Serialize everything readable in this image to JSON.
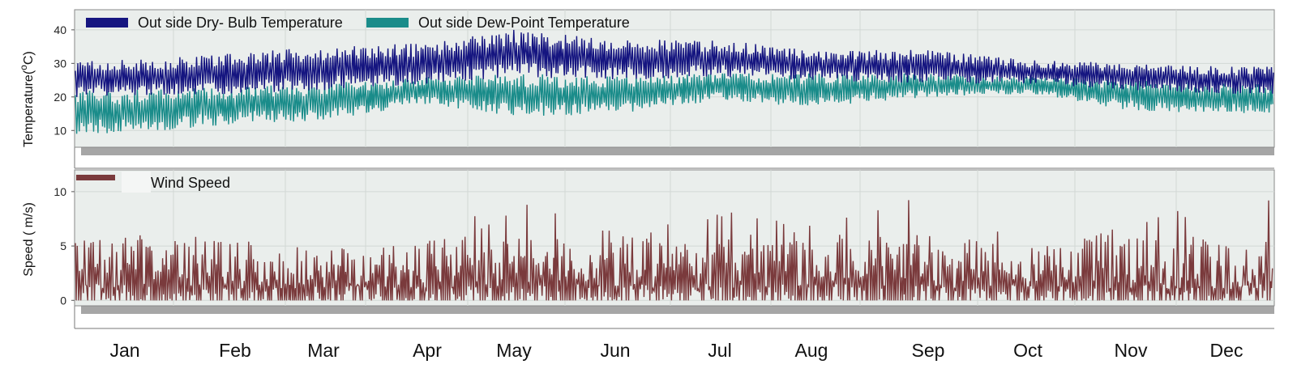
{
  "chart_data": [
    {
      "type": "line",
      "ylabel": "Temperature(°C)",
      "ylabel_main": "Temperature(",
      "ylabel_sup": "o",
      "ylabel_unit": "C)",
      "ylim": [
        5,
        46
      ],
      "yticks": [
        10,
        20,
        30,
        40
      ],
      "grid": true,
      "legend_position": "top-left",
      "series": [
        {
          "name": "Out side Dry- Bulb Temperature",
          "color": "#151580",
          "envelope_by_month": {
            "months": [
              "Jan",
              "Feb",
              "Mar",
              "Apr",
              "May",
              "Jun",
              "Jul",
              "Aug",
              "Sep",
              "Oct",
              "Nov",
              "Dec"
            ],
            "min": [
              20,
              21,
              22,
              24,
              26,
              25,
              26,
              25,
              24,
              24,
              22,
              21
            ],
            "max": [
              31,
              33,
              35,
              36,
              40,
              37,
              37,
              34,
              34,
              31,
              30,
              29
            ]
          }
        },
        {
          "name": "Out side Dew-Point Temperature",
          "color": "#1a8c8a",
          "envelope_by_month": {
            "months": [
              "Jan",
              "Feb",
              "Mar",
              "Apr",
              "May",
              "Jun",
              "Jul",
              "Aug",
              "Sep",
              "Oct",
              "Nov",
              "Dec"
            ],
            "min": [
              9,
              12,
              13,
              18,
              14,
              15,
              19,
              17,
              20,
              21,
              16,
              15
            ],
            "max": [
              22,
              23,
              24,
              26,
              27,
              26,
              27,
              27,
              27,
              26,
              25,
              24
            ]
          }
        }
      ]
    },
    {
      "type": "line",
      "ylabel": "Speed ( m/s)",
      "ylim": [
        -0.5,
        12
      ],
      "yticks": [
        0,
        5,
        10
      ],
      "grid": true,
      "legend_position": "top-left",
      "series": [
        {
          "name": "Wind Speed",
          "color": "#7a3a3c",
          "typical_max_by_month": {
            "months": [
              "Jan",
              "Feb",
              "Mar",
              "Apr",
              "May",
              "Jun",
              "Jul",
              "Aug",
              "Sep",
              "Oct",
              "Nov",
              "Dec"
            ],
            "max": [
              6,
              6,
              5,
              6,
              9.2,
              6.5,
              8.5,
              7,
              10.2,
              5.5,
              7,
              10.2
            ]
          }
        }
      ]
    }
  ],
  "x_axis": {
    "months": [
      "Jan",
      "Feb",
      "Mar",
      "Apr",
      "May",
      "Jun",
      "Jul",
      "Aug",
      "Sep",
      "Oct",
      "Nov",
      "Dec"
    ]
  }
}
